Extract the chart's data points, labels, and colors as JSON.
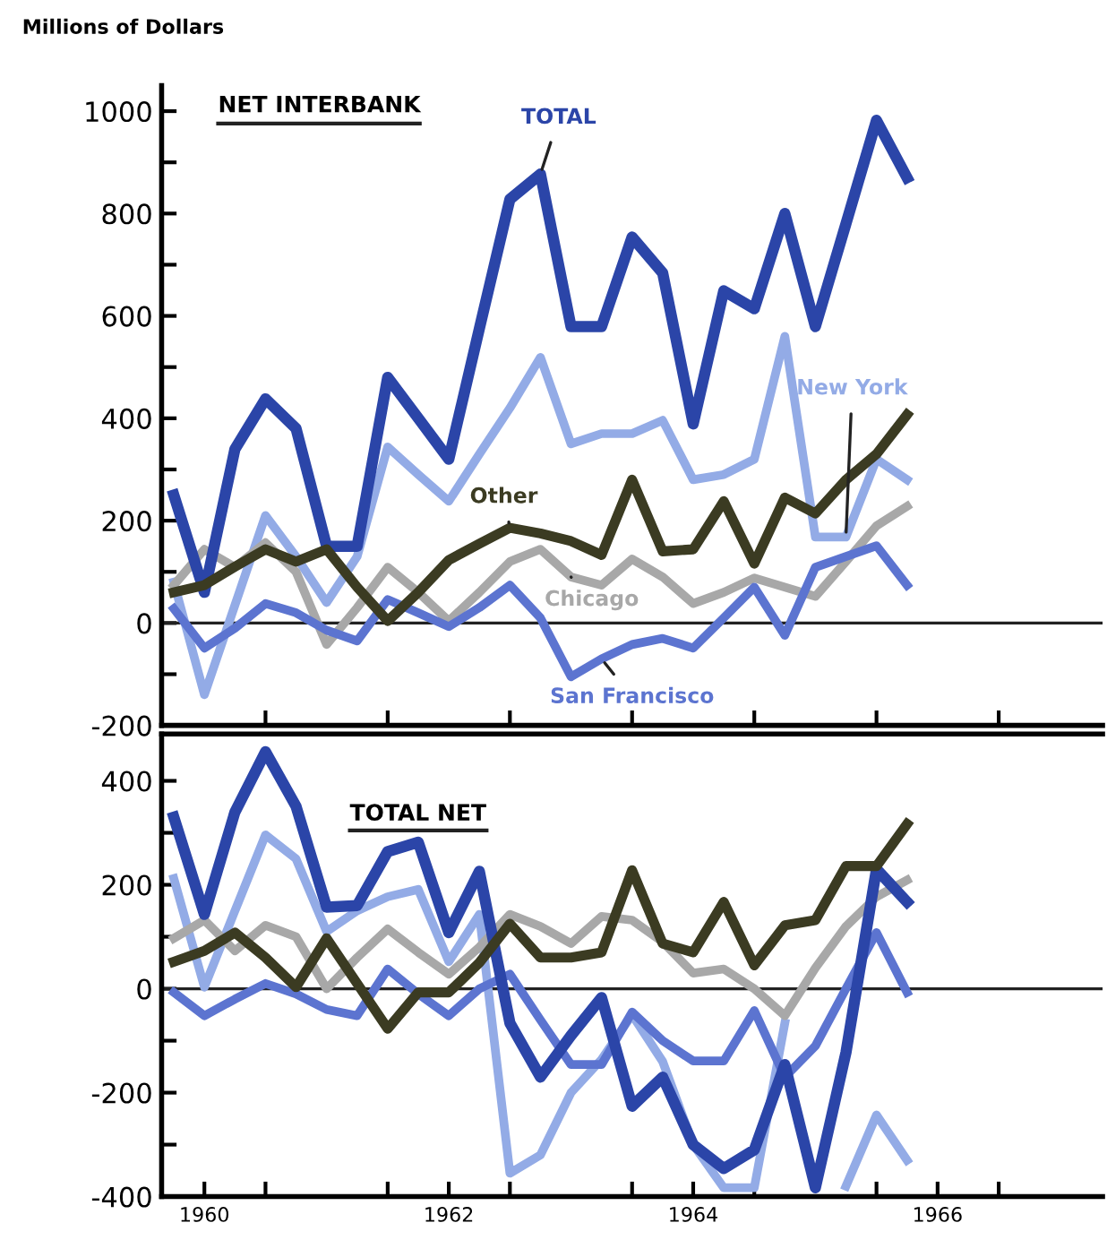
{
  "chart_data": [
    {
      "type": "line",
      "title": "NET INTERBANK",
      "ylabel": "Millions of Dollars",
      "x": [
        1960.25,
        1960.5,
        1960.75,
        1961,
        1961.25,
        1961.5,
        1961.75,
        1962,
        1962.25,
        1962.5,
        1962.75,
        1963,
        1963.25,
        1963.5,
        1963.75,
        1964,
        1964.25,
        1964.5,
        1964.75,
        1965,
        1965.25,
        1965.5,
        1965.75,
        1966,
        1966.25
      ],
      "series": [
        {
          "name": "TOTAL",
          "color": "#2b45a8",
          "values": [
            250,
            60,
            340,
            438,
            380,
            150,
            150,
            480,
            400,
            320,
            575,
            828,
            877,
            579,
            579,
            754,
            684,
            389,
            649,
            614,
            800,
            579,
            780,
            982,
            870
          ]
        },
        {
          "name": "New York",
          "color": "#93abe6",
          "values": [
            80,
            -140,
            35,
            210,
            130,
            40,
            130,
            344,
            290,
            238,
            330,
            420,
            519,
            350,
            370,
            370,
            396,
            280,
            290,
            320,
            560,
            168,
            168,
            320,
            280
          ]
        },
        {
          "name": "Chicago",
          "color": "#a8a8a8",
          "values": [
            74,
            144,
            109,
            157,
            100,
            -42,
            30,
            109,
            60,
            4,
            60,
            120,
            144,
            90,
            74,
            125,
            90,
            38,
            60,
            88,
            70,
            52,
            120,
            190,
            228
          ]
        },
        {
          "name": "San Francisco",
          "color": "#5c74d0",
          "values": [
            28,
            -49,
            -10,
            38,
            20,
            -14,
            -35,
            46,
            20,
            -7,
            30,
            74,
            10,
            -105,
            -70,
            -42,
            -30,
            -49,
            10,
            70,
            -24,
            109,
            130,
            151,
            74
          ]
        },
        {
          "name": "Other",
          "color": "#3b3b22",
          "values": [
            60,
            74,
            110,
            144,
            120,
            144,
            70,
            4,
            60,
            123,
            155,
            186,
            175,
            160,
            133,
            280,
            140,
            144,
            238,
            116,
            245,
            214,
            280,
            330,
            407
          ]
        }
      ],
      "xlim": [
        1960.15,
        1967.85
      ],
      "xticks": [
        {
          "value": 1961,
          "label": null
        },
        {
          "value": 1962,
          "label": null
        },
        {
          "value": 1963,
          "label": null
        },
        {
          "value": 1964,
          "label": null
        },
        {
          "value": 1965,
          "label": null
        },
        {
          "value": 1966,
          "label": null
        },
        {
          "value": 1967,
          "label": null
        }
      ],
      "ylim": [
        -200,
        1050
      ],
      "yticks": [
        -200,
        {
          "value": -100,
          "label": null
        },
        0,
        {
          "value": 100,
          "label": null
        },
        200,
        {
          "value": 300,
          "label": null
        },
        400,
        {
          "value": 500,
          "label": null
        },
        600,
        {
          "value": 700,
          "label": null
        },
        800,
        {
          "value": 900,
          "label": null
        },
        1000
      ],
      "ref_lines": [
        {
          "axis": "y",
          "value": 0,
          "color": "#222222"
        }
      ],
      "tick_labels": "y",
      "grid": false,
      "legend": false
    },
    {
      "type": "line",
      "title": "TOTAL NET",
      "x": [
        1960.25,
        1960.5,
        1960.75,
        1961,
        1961.25,
        1961.5,
        1961.75,
        1962,
        1962.25,
        1962.5,
        1962.75,
        1963,
        1963.25,
        1963.5,
        1963.75,
        1964,
        1964.25,
        1964.5,
        1964.75,
        1965,
        1965.25,
        1965.5,
        1965.75,
        1966,
        1966.25
      ],
      "series": [
        {
          "color": "#2b45a8",
          "values": [
            330,
            143,
            340,
            456,
            351,
            157,
            160,
            264,
            282,
            108,
            226,
            -66,
            -170,
            -90,
            -17,
            -226,
            -170,
            -300,
            -346,
            -310,
            -146,
            -383,
            -123,
            230,
            167
          ]
        },
        {
          "color": "#93abe6",
          "values": [
            212,
            3,
            150,
            296,
            250,
            110,
            150,
            177,
            191,
            52,
            143,
            -355,
            -320,
            -200,
            -136,
            -50,
            -140,
            -300,
            -383,
            -383,
            -66,
            null,
            -380,
            -243,
            -330
          ]
        },
        {
          "color": "#a8a8a8",
          "values": [
            97,
            132,
            73,
            122,
            100,
            0,
            60,
            115,
            70,
            28,
            80,
            143,
            120,
            87,
            139,
            132,
            90,
            30,
            38,
            0,
            -52,
            40,
            120,
            177,
            209
          ]
        },
        {
          "color": "#5c74d0",
          "values": [
            -7,
            -52,
            -20,
            10,
            -10,
            -40,
            -52,
            38,
            -10,
            -52,
            0,
            28,
            -60,
            -146,
            -146,
            -45,
            -100,
            -139,
            -139,
            -42,
            -170,
            -110,
            0,
            108,
            -7
          ]
        },
        {
          "color": "#3b3b22",
          "values": [
            52,
            73,
            108,
            60,
            3,
            97,
            10,
            -77,
            -7,
            -7,
            50,
            125,
            60,
            60,
            70,
            228,
            87,
            70,
            167,
            45,
            122,
            132,
            236,
            236,
            317
          ]
        }
      ],
      "xlim": [
        1960.15,
        1967.85
      ],
      "xticks": [
        {
          "value": 1960.5,
          "label": "1960"
        },
        {
          "value": 1961,
          "label": null
        },
        {
          "value": 1962,
          "label": null
        },
        {
          "value": 1962.5,
          "label": "1962"
        },
        {
          "value": 1963,
          "label": null
        },
        {
          "value": 1964,
          "label": null
        },
        {
          "value": 1964.5,
          "label": "1964"
        },
        {
          "value": 1965,
          "label": null
        },
        {
          "value": 1966,
          "label": null
        },
        {
          "value": 1966.5,
          "label": "1966"
        },
        {
          "value": 1967,
          "label": null
        }
      ],
      "ylim": [
        -400,
        490
      ],
      "yticks": [
        -400,
        {
          "value": -300,
          "label": null
        },
        -200,
        {
          "value": -100,
          "label": null
        },
        0,
        {
          "value": 100,
          "label": null
        },
        200,
        {
          "value": 300,
          "label": null
        },
        400
      ],
      "ref_lines": [
        {
          "axis": "y",
          "value": 0,
          "color": "#222222"
        }
      ],
      "grid": false,
      "legend": false
    }
  ]
}
